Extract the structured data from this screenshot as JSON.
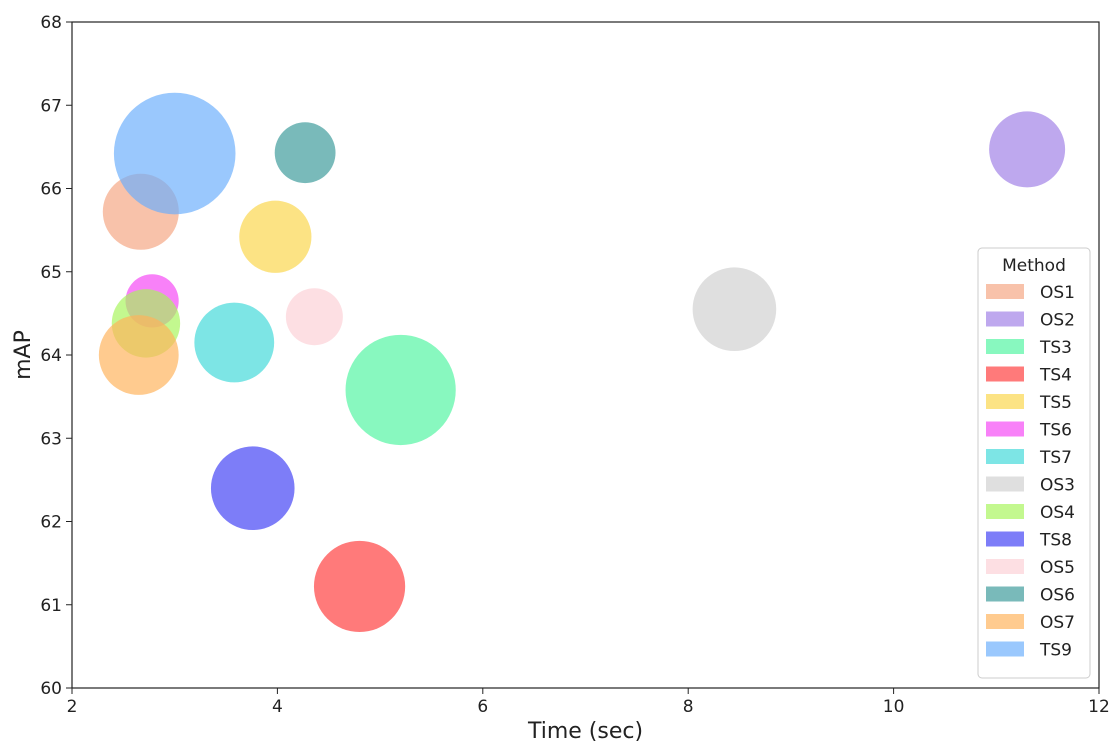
{
  "chart_data": {
    "type": "scatter",
    "xlabel": "Time (sec)",
    "ylabel": "mAP",
    "xlim": [
      2,
      12
    ],
    "ylim": [
      60,
      68
    ],
    "xticks": [
      2,
      4,
      6,
      8,
      10,
      12
    ],
    "yticks": [
      60,
      61,
      62,
      63,
      64,
      65,
      66,
      67,
      68
    ],
    "grid": false,
    "legend": {
      "title": "Method",
      "placement": "lower-right"
    },
    "series": [
      {
        "name": "OS1",
        "x": 2.67,
        "y": 65.72,
        "color": "#f4a582",
        "size": 1.0
      },
      {
        "name": "OS2",
        "x": 11.3,
        "y": 66.47,
        "color": "#9f7fe6",
        "size": 1.0
      },
      {
        "name": "TS3",
        "x": 5.2,
        "y": 63.58,
        "color": "#4ff5a0",
        "size": 1.45
      },
      {
        "name": "TS4",
        "x": 4.8,
        "y": 61.22,
        "color": "#ff3b3b",
        "size": 1.2
      },
      {
        "name": "TS5",
        "x": 3.98,
        "y": 65.42,
        "color": "#fad54a",
        "size": 0.95
      },
      {
        "name": "TS6",
        "x": 2.78,
        "y": 64.65,
        "color": "#f545f5",
        "size": 0.7
      },
      {
        "name": "TS7",
        "x": 3.58,
        "y": 64.15,
        "color": "#3fd9d9",
        "size": 1.05
      },
      {
        "name": "OS3",
        "x": 8.45,
        "y": 64.55,
        "color": "#d0d0d0",
        "size": 1.1
      },
      {
        "name": "OS4",
        "x": 2.72,
        "y": 64.38,
        "color": "#a6f55a",
        "size": 0.9
      },
      {
        "name": "TS8",
        "x": 3.76,
        "y": 62.4,
        "color": "#3f3ff5",
        "size": 1.1
      },
      {
        "name": "OS5",
        "x": 4.36,
        "y": 64.46,
        "color": "#fcd0d6",
        "size": 0.75
      },
      {
        "name": "OS6",
        "x": 4.27,
        "y": 66.43,
        "color": "#3a9a9a",
        "size": 0.8
      },
      {
        "name": "OS7",
        "x": 2.65,
        "y": 64.0,
        "color": "#ffb35a",
        "size": 1.05
      },
      {
        "name": "TS9",
        "x": 3.0,
        "y": 66.42,
        "color": "#6aaefc",
        "size": 1.6
      }
    ]
  }
}
